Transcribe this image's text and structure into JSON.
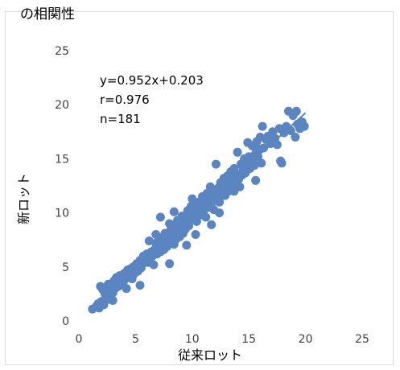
{
  "header": {
    "clipped_title": "の相関性"
  },
  "chart_data": {
    "type": "scatter",
    "title": "",
    "xlabel": "従来ロット",
    "ylabel": "新ロット",
    "xlim": [
      0,
      25
    ],
    "ylim": [
      0,
      25
    ],
    "xticks": [
      "0",
      "5",
      "10",
      "15",
      "20",
      "25"
    ],
    "yticks": [
      "0",
      "5",
      "10",
      "15",
      "20",
      "25"
    ],
    "grid": false,
    "legend": "none",
    "marker_color": "#5b85c0",
    "line_color": "#5b85c0",
    "trendline": {
      "slope": 0.952,
      "intercept": 0.203,
      "x_range": [
        1.2,
        20.0
      ]
    },
    "annotations": [
      "y=0.952x+0.203",
      "r=0.976",
      "n=181"
    ],
    "series": [
      {
        "points": [
          [
            1.2,
            1.1
          ],
          [
            1.5,
            1.3
          ],
          [
            1.7,
            1.6
          ],
          [
            1.8,
            1.2
          ],
          [
            1.9,
            3.2
          ],
          [
            2.0,
            1.8
          ],
          [
            2.1,
            2.9
          ],
          [
            2.2,
            1.5
          ],
          [
            2.3,
            2.5
          ],
          [
            2.4,
            3.0
          ],
          [
            2.5,
            2.2
          ],
          [
            2.6,
            3.4
          ],
          [
            2.7,
            2.0
          ],
          [
            2.8,
            2.8
          ],
          [
            2.9,
            3.3
          ],
          [
            3.0,
            2.6
          ],
          [
            3.1,
            3.7
          ],
          [
            3.2,
            3.0
          ],
          [
            3.3,
            4.0
          ],
          [
            3.4,
            3.5
          ],
          [
            3.5,
            3.2
          ],
          [
            3.6,
            4.2
          ],
          [
            3.7,
            3.8
          ],
          [
            3.8,
            4.1
          ],
          [
            3.9,
            3.5
          ],
          [
            4.0,
            4.4
          ],
          [
            4.1,
            3.9
          ],
          [
            4.2,
            3.0
          ],
          [
            4.3,
            4.7
          ],
          [
            4.4,
            4.2
          ],
          [
            4.5,
            4.8
          ],
          [
            4.6,
            4.5
          ],
          [
            4.7,
            3.9
          ],
          [
            4.8,
            5.0
          ],
          [
            4.9,
            4.4
          ],
          [
            5.0,
            4.9
          ],
          [
            5.1,
            5.3
          ],
          [
            5.2,
            4.6
          ],
          [
            5.3,
            5.1
          ],
          [
            5.4,
            5.6
          ],
          [
            5.5,
            4.9
          ],
          [
            5.6,
            5.3
          ],
          [
            5.7,
            6.0
          ],
          [
            5.8,
            5.5
          ],
          [
            5.9,
            5.8
          ],
          [
            6.0,
            6.2
          ],
          [
            6.1,
            5.4
          ],
          [
            6.2,
            7.4
          ],
          [
            6.3,
            5.9
          ],
          [
            6.4,
            6.4
          ],
          [
            6.5,
            6.0
          ],
          [
            6.6,
            5.2
          ],
          [
            6.7,
            6.6
          ],
          [
            6.8,
            7.2
          ],
          [
            6.9,
            6.2
          ],
          [
            7.0,
            6.8
          ],
          [
            7.1,
            7.7
          ],
          [
            7.2,
            6.4
          ],
          [
            7.3,
            7.0
          ],
          [
            7.4,
            7.5
          ],
          [
            7.5,
            6.6
          ],
          [
            7.6,
            8.1
          ],
          [
            7.7,
            7.3
          ],
          [
            7.8,
            6.9
          ],
          [
            7.9,
            7.8
          ],
          [
            8.0,
            9.0
          ],
          [
            8.0,
            5.3
          ],
          [
            8.1,
            8.4
          ],
          [
            8.2,
            7.4
          ],
          [
            8.3,
            8.0
          ],
          [
            8.4,
            7.1
          ],
          [
            8.5,
            8.7
          ],
          [
            8.6,
            7.6
          ],
          [
            8.7,
            9.3
          ],
          [
            8.8,
            8.2
          ],
          [
            8.9,
            7.8
          ],
          [
            9.0,
            8.9
          ],
          [
            9.1,
            9.7
          ],
          [
            9.2,
            8.1
          ],
          [
            9.3,
            9.0
          ],
          [
            9.4,
            8.5
          ],
          [
            9.5,
            9.5
          ],
          [
            9.6,
            10.2
          ],
          [
            9.7,
            8.8
          ],
          [
            9.8,
            9.4
          ],
          [
            9.9,
            10.6
          ],
          [
            10.0,
            11.3
          ],
          [
            10.1,
            9.7
          ],
          [
            10.2,
            10.0
          ],
          [
            10.3,
            10.9
          ],
          [
            10.4,
            9.2
          ],
          [
            10.5,
            10.4
          ],
          [
            10.6,
            11.0
          ],
          [
            10.7,
            9.8
          ],
          [
            10.8,
            10.7
          ],
          [
            10.9,
            11.5
          ],
          [
            11.0,
            10.2
          ],
          [
            11.1,
            11.0
          ],
          [
            11.2,
            9.6
          ],
          [
            11.3,
            11.8
          ],
          [
            11.4,
            10.5
          ],
          [
            11.5,
            11.2
          ],
          [
            11.6,
            12.4
          ],
          [
            11.7,
            10.9
          ],
          [
            11.8,
            11.6
          ],
          [
            11.9,
            10.3
          ],
          [
            12.0,
            12.0
          ],
          [
            12.1,
            14.5
          ],
          [
            12.2,
            11.4
          ],
          [
            12.3,
            12.3
          ],
          [
            12.4,
            11.0
          ],
          [
            12.5,
            12.8
          ],
          [
            12.6,
            11.9
          ],
          [
            12.7,
            12.5
          ],
          [
            12.8,
            13.2
          ],
          [
            12.9,
            11.6
          ],
          [
            13.0,
            12.4
          ],
          [
            13.1,
            13.4
          ],
          [
            13.2,
            12.0
          ],
          [
            13.3,
            12.9
          ],
          [
            13.4,
            13.8
          ],
          [
            13.5,
            12.6
          ],
          [
            13.6,
            13.2
          ],
          [
            13.7,
            14.1
          ],
          [
            13.8,
            12.8
          ],
          [
            13.9,
            13.6
          ],
          [
            14.0,
            15.6
          ],
          [
            14.1,
            13.1
          ],
          [
            14.2,
            12.4
          ],
          [
            14.3,
            14.5
          ],
          [
            14.4,
            13.5
          ],
          [
            14.5,
            14.0
          ],
          [
            14.6,
            15.0
          ],
          [
            14.7,
            13.7
          ],
          [
            14.8,
            14.6
          ],
          [
            14.9,
            16.5
          ],
          [
            15.0,
            15.2
          ],
          [
            15.1,
            14.1
          ],
          [
            15.2,
            14.8
          ],
          [
            15.3,
            16.2
          ],
          [
            15.4,
            15.0
          ],
          [
            15.5,
            14.4
          ],
          [
            15.6,
            15.5
          ],
          [
            15.7,
            16.6
          ],
          [
            15.8,
            15.2
          ],
          [
            15.9,
            15.9
          ],
          [
            16.0,
            17.0
          ],
          [
            16.1,
            14.6
          ],
          [
            16.3,
            16.0
          ],
          [
            16.5,
            16.8
          ],
          [
            16.7,
            17.1
          ],
          [
            16.9,
            16.4
          ],
          [
            17.1,
            17.5
          ],
          [
            17.3,
            16.9
          ],
          [
            17.5,
            16.3
          ],
          [
            17.7,
            17.8
          ],
          [
            17.9,
            14.6
          ],
          [
            18.1,
            17.4
          ],
          [
            18.3,
            18.0
          ],
          [
            18.5,
            19.4
          ],
          [
            18.7,
            17.6
          ],
          [
            18.9,
            19.0
          ],
          [
            19.1,
            17.0
          ],
          [
            19.2,
            19.4
          ],
          [
            19.3,
            18.2
          ],
          [
            19.5,
            17.8
          ],
          [
            19.7,
            18.4
          ],
          [
            19.9,
            18.0
          ],
          [
            10.3,
            8.0
          ],
          [
            9.5,
            7.0
          ],
          [
            11.7,
            8.9
          ],
          [
            12.4,
            10.0
          ],
          [
            8.4,
            10.1
          ],
          [
            6.8,
            8.0
          ],
          [
            7.2,
            9.6
          ],
          [
            3.0,
            1.9
          ],
          [
            5.4,
            3.3
          ],
          [
            15.6,
            13.0
          ],
          [
            16.2,
            18.0
          ],
          [
            13.7,
            12.0
          ],
          [
            17.8,
            14.8
          ]
        ]
      }
    ]
  }
}
